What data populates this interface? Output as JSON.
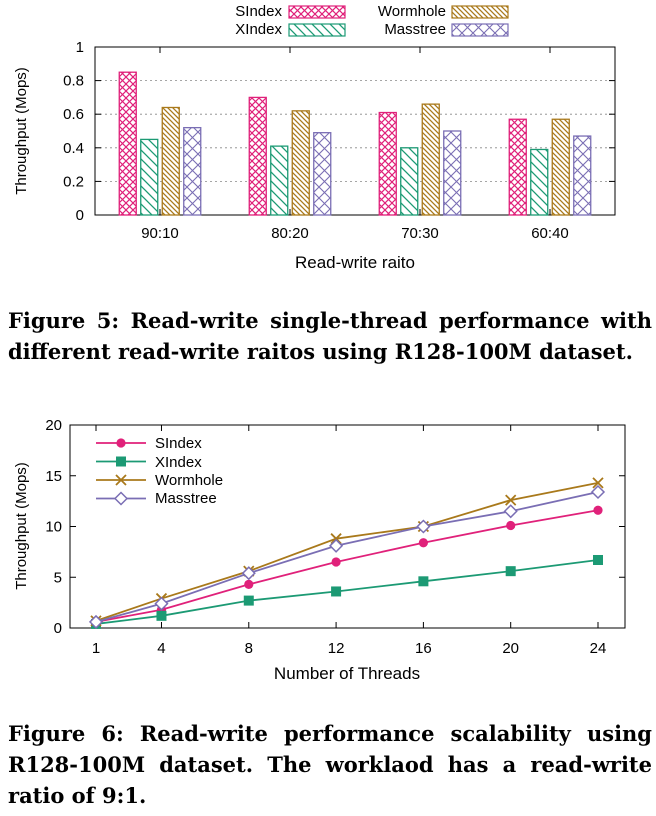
{
  "figure5": {
    "caption": "Figure 5: Read-write single-thread performance with different read-write raitos using R128-100M dataset.",
    "colors": {
      "SIndex": "#e0217a",
      "XIndex": "#1c9a74",
      "Wormhole": "#a9791b",
      "Masstree": "#7a6eb4"
    },
    "patterns": {
      "SIndex": "crosshatch",
      "XIndex": "diagonal-backslash",
      "Wormhole": "diagonal-backslash-dense",
      "Masstree": "diagonal-cross"
    }
  },
  "figure6": {
    "caption": "Figure 6: Read-write performance scalability using R128-100M dataset. The worklaod has a read-write ratio of 9:1.",
    "colors": {
      "SIndex": "#e0217a",
      "XIndex": "#1c9a74",
      "Wormhole": "#a9791b",
      "Masstree": "#7a6eb4"
    },
    "markers": {
      "SIndex": "filled-circle",
      "XIndex": "filled-square",
      "Wormhole": "cross",
      "Masstree": "open-diamond"
    }
  },
  "chart_data": [
    {
      "type": "bar",
      "title": "",
      "xlabel": "Read-write raito",
      "ylabel": "Throughput (Mops)",
      "categories": [
        "90:10",
        "80:20",
        "70:30",
        "60:40"
      ],
      "series": [
        {
          "name": "SIndex",
          "values": [
            0.85,
            0.7,
            0.61,
            0.57
          ]
        },
        {
          "name": "XIndex",
          "values": [
            0.45,
            0.41,
            0.4,
            0.39
          ]
        },
        {
          "name": "Wormhole",
          "values": [
            0.64,
            0.62,
            0.66,
            0.57
          ]
        },
        {
          "name": "Masstree",
          "values": [
            0.52,
            0.49,
            0.5,
            0.47
          ]
        }
      ],
      "ylim": [
        0,
        1
      ],
      "yticks": [
        "0",
        "0.2",
        "0.4",
        "0.6",
        "0.8",
        "1"
      ],
      "grid": true,
      "legend": "top, two rows above plot"
    },
    {
      "type": "line",
      "title": "",
      "xlabel": "Number of Threads",
      "ylabel": "Throughput (Mops)",
      "categories": [
        "1",
        "4",
        "8",
        "12",
        "16",
        "20",
        "24"
      ],
      "series": [
        {
          "name": "SIndex",
          "values": [
            0.6,
            1.8,
            4.3,
            6.5,
            8.4,
            10.1,
            11.6
          ]
        },
        {
          "name": "XIndex",
          "values": [
            0.4,
            1.2,
            2.7,
            3.6,
            4.6,
            5.6,
            6.7
          ]
        },
        {
          "name": "Wormhole",
          "values": [
            0.7,
            2.9,
            5.6,
            8.8,
            10.0,
            12.6,
            14.3
          ]
        },
        {
          "name": "Masstree",
          "values": [
            0.6,
            2.4,
            5.4,
            8.1,
            10.0,
            11.5,
            13.4
          ]
        }
      ],
      "ylim": [
        0,
        20
      ],
      "yticks": [
        "0",
        "5",
        "10",
        "15",
        "20"
      ],
      "grid": false,
      "legend": "top-left, inside plot"
    }
  ]
}
